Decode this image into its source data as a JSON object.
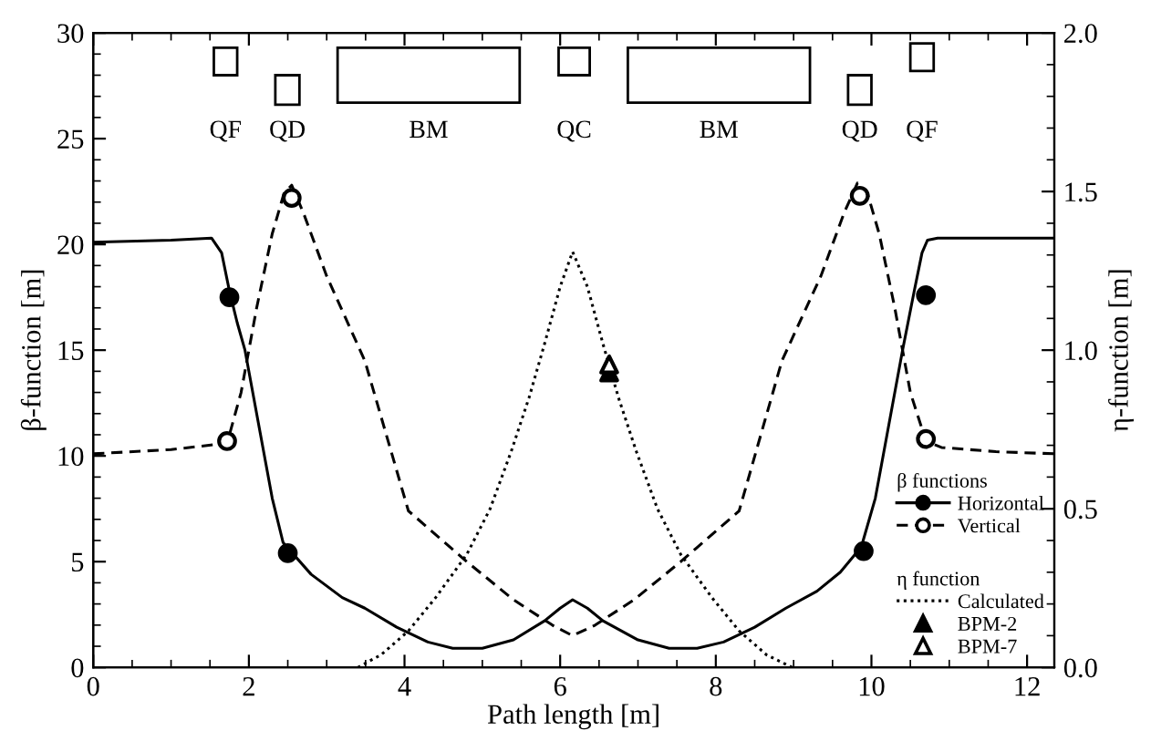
{
  "chart_data": {
    "type": "line",
    "xlabel": "Path length [m]",
    "ylabel": "β-function [m]",
    "y2label": "η-function [m]",
    "legend_title": [
      "β functions",
      "η function"
    ],
    "xlim": [
      0,
      12.35
    ],
    "xticks": [
      0,
      2,
      4,
      6,
      8,
      10,
      12
    ],
    "ylim": [
      0,
      30
    ],
    "yticks": [
      0,
      5,
      10,
      15,
      20,
      25,
      30
    ],
    "y2lim": [
      0,
      2.0
    ],
    "y2ticks": [
      {
        "value": 0,
        "label": "0.0"
      },
      0.5,
      {
        "value": 1,
        "label": "1.0"
      },
      1.5,
      {
        "value": 2,
        "label": "2.0"
      }
    ],
    "grid": false,
    "legend": "bottom right",
    "series": [
      {
        "name": "Horizontal",
        "axis": "y",
        "color": "#000000",
        "line_style": "solid",
        "marker": "none",
        "x": [
          0,
          1.0,
          1.52,
          1.65,
          1.75,
          1.85,
          1.95,
          2.15,
          2.3,
          2.44,
          2.8,
          3.2,
          3.49,
          3.9,
          4.3,
          4.62,
          5.0,
          5.4,
          5.8,
          6.0,
          6.16,
          6.35,
          6.55,
          7.0,
          7.4,
          7.76,
          8.1,
          8.5,
          8.9,
          9.3,
          9.6,
          9.87,
          10.05,
          10.2,
          10.4,
          10.55,
          10.65,
          10.72,
          10.85,
          11.5,
          12.35
        ],
        "values": [
          20.1,
          20.2,
          20.3,
          19.6,
          17.8,
          16.3,
          15.0,
          11.0,
          8.0,
          5.9,
          4.4,
          3.3,
          2.8,
          1.9,
          1.2,
          0.9,
          0.9,
          1.3,
          2.2,
          2.8,
          3.2,
          2.8,
          2.2,
          1.3,
          0.9,
          0.9,
          1.2,
          1.9,
          2.8,
          3.6,
          4.5,
          5.7,
          8.0,
          11.0,
          15.0,
          17.8,
          19.6,
          20.2,
          20.3,
          20.3,
          20.3
        ]
      },
      {
        "type": "scatter",
        "axis": "y",
        "color": "#000000",
        "marker": "circle",
        "x": [
          1.75,
          2.5,
          9.9,
          10.7
        ],
        "values": [
          17.5,
          5.4,
          5.5,
          17.6
        ]
      },
      {
        "name": "Vertical",
        "axis": "y",
        "color": "#000000",
        "line_style": "dashed",
        "marker": "none",
        "x": [
          0,
          1.0,
          1.72,
          1.9,
          2.1,
          2.3,
          2.45,
          2.55,
          2.7,
          3.0,
          3.49,
          4.05,
          4.8,
          5.4,
          5.9,
          6.16,
          6.45,
          6.95,
          7.55,
          8.3,
          8.85,
          9.35,
          9.65,
          9.82,
          9.95,
          10.1,
          10.3,
          10.5,
          10.7,
          10.9,
          11.6,
          12.35
        ],
        "values": [
          10.1,
          10.3,
          10.6,
          13.0,
          17.0,
          20.5,
          22.4,
          22.8,
          21.5,
          18.5,
          14.5,
          7.4,
          5.0,
          3.2,
          2.0,
          1.5,
          2.0,
          3.2,
          5.0,
          7.4,
          14.5,
          18.5,
          21.5,
          22.9,
          22.4,
          20.5,
          17.0,
          13.0,
          10.7,
          10.4,
          10.2,
          10.1
        ]
      },
      {
        "type": "scatter",
        "axis": "y",
        "color": "#000000",
        "marker": "circle-open",
        "x": [
          1.72,
          2.55,
          9.85,
          10.7
        ],
        "values": [
          10.7,
          22.2,
          22.3,
          10.8
        ]
      },
      {
        "name": "Calculated",
        "axis": "y2",
        "color": "#000000",
        "line_style": "dotted",
        "marker": "none",
        "x": [
          3.4,
          3.7,
          4.05,
          4.4,
          4.8,
          5.1,
          5.37,
          5.6,
          5.8,
          6.0,
          6.16,
          6.35,
          6.55,
          6.75,
          6.98,
          7.25,
          7.55,
          7.95,
          8.3,
          8.65,
          8.98
        ],
        "values": [
          0,
          0.04,
          0.115,
          0.22,
          0.356,
          0.5,
          0.68,
          0.85,
          1.02,
          1.2,
          1.31,
          1.2,
          1.02,
          0.85,
          0.68,
          0.5,
          0.356,
          0.22,
          0.115,
          0.04,
          0
        ]
      },
      {
        "name": "BPM-2",
        "type": "scatter",
        "axis": "y2",
        "color": "#000000",
        "marker": "triangle",
        "x": [
          6.63
        ],
        "values": [
          0.93
        ]
      },
      {
        "name": "BPM-7",
        "type": "scatter",
        "axis": "y2",
        "color": "#000000",
        "marker": "triangle-open",
        "x": [
          6.63
        ],
        "values": [
          0.955
        ]
      }
    ],
    "annotations": [
      "QF",
      "QD",
      "BM",
      "QC",
      "BM",
      "QD",
      "QF"
    ]
  }
}
